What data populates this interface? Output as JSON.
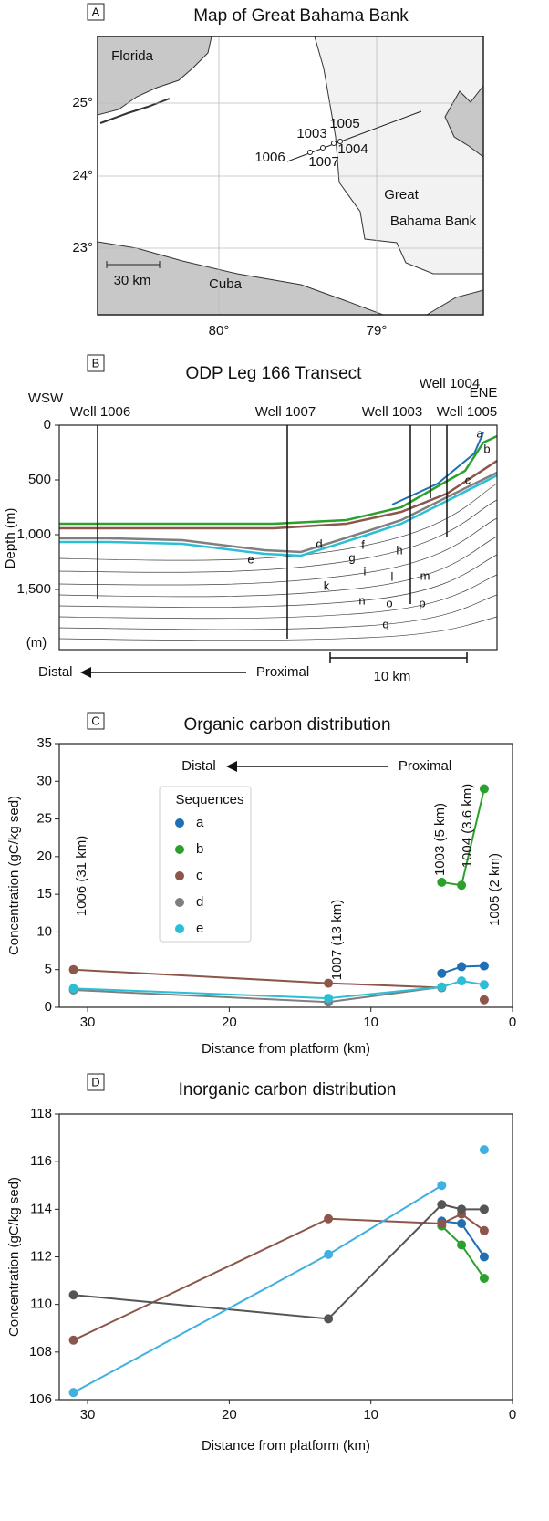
{
  "map": {
    "panel": "A",
    "title": "Map of Great Bahama Bank",
    "florida": "Florida",
    "cuba": "Cuba",
    "bank": [
      "Great",
      "Bahama Bank"
    ],
    "scale": "30 km",
    "lat_labels": [
      "25°",
      "24°",
      "23°"
    ],
    "lon_labels": [
      "80°",
      "79°"
    ],
    "wells": [
      "1003",
      "1005",
      "1006",
      "1007",
      "1004"
    ]
  },
  "transect": {
    "panel": "B",
    "title": "ODP Leg 166 Transect",
    "west": "WSW",
    "east": "ENE",
    "wells": [
      "Well 1006",
      "Well 1007",
      "Well 1003",
      "Well 1004",
      "Well 1005"
    ],
    "ylabel": "Depth (m)",
    "yunit": "(m)",
    "ylim": [
      0,
      2050
    ],
    "yticks": [
      0,
      500,
      {
        "value": 1000,
        "label": "1,000"
      },
      {
        "value": 1500,
        "label": "1,500"
      }
    ],
    "sequences": [
      "a",
      "b",
      "c",
      "d",
      "e",
      "f",
      "g",
      "h",
      "i",
      "k",
      "l",
      "m",
      "n",
      "o",
      "p",
      "q"
    ],
    "distal": "Distal",
    "proximal": "Proximal",
    "scale": "10 km"
  },
  "chart_data": [
    {
      "panel": "C",
      "type": "line",
      "title": "Organic carbon distribution",
      "xlabel": "Distance from platform (km)",
      "ylabel": "Concentration (gC/kg sed)",
      "xlim": [
        32,
        0
      ],
      "xticks": [
        30,
        20,
        10,
        0
      ],
      "ylim": [
        0,
        35
      ],
      "yticks": [
        0,
        5,
        10,
        15,
        20,
        25,
        30,
        35
      ],
      "distal": "Distal",
      "proximal": "Proximal",
      "legend_title": "Sequences",
      "annotations": [
        "1006 (31 km)",
        "1007 (13 km)",
        "1003 (5 km)",
        "1004 (3.6 km)",
        "1005 (2 km)"
      ],
      "x": [
        31,
        13,
        5,
        3.6,
        2
      ],
      "series": [
        {
          "name": "a",
          "color": "#1f6fb4",
          "values": [
            null,
            null,
            4.5,
            5.4,
            5.5
          ]
        },
        {
          "name": "b",
          "color": "#2ca02c",
          "values": [
            null,
            null,
            16.6,
            16.2,
            29
          ]
        },
        {
          "name": "c",
          "color": "#8c564b",
          "values": [
            5.0,
            3.2,
            2.6,
            null,
            1.0
          ]
        },
        {
          "name": "d",
          "color": "#7f7f7f",
          "values": [
            2.3,
            0.7,
            2.7,
            null,
            null
          ]
        },
        {
          "name": "e",
          "color": "#2bbfd6",
          "values": [
            2.5,
            1.2,
            2.7,
            3.5,
            3.0
          ]
        }
      ]
    },
    {
      "panel": "D",
      "type": "line",
      "title": "Inorganic carbon distribution",
      "xlabel": "Distance from platform (km)",
      "ylabel": "Concentration (gC/kg sed)",
      "xlim": [
        32,
        0
      ],
      "xticks": [
        30,
        20,
        10,
        0
      ],
      "ylim": [
        106,
        118
      ],
      "yticks": [
        106,
        108,
        110,
        112,
        114,
        116,
        118
      ],
      "x": [
        31,
        13,
        5,
        3.6,
        2
      ],
      "series": [
        {
          "color": "#1f6fb4",
          "values": [
            null,
            null,
            113.5,
            113.4,
            112.0
          ]
        },
        {
          "color": "#2ca02c",
          "values": [
            null,
            null,
            113.3,
            112.5,
            111.1
          ]
        },
        {
          "color": "#8c564b",
          "values": [
            108.5,
            113.6,
            113.4,
            113.8,
            113.1
          ]
        },
        {
          "color": "#555555",
          "values": [
            110.4,
            109.4,
            114.2,
            114.0,
            114.0
          ]
        },
        {
          "color": "#40b0e0",
          "values": [
            106.3,
            112.1,
            115.0,
            null,
            116.5
          ]
        }
      ]
    }
  ]
}
